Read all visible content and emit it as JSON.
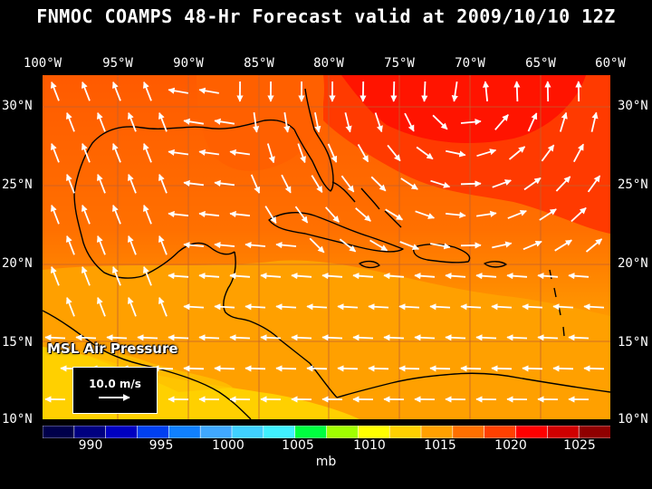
{
  "title": "FNMOC COAMPS 48-Hr Forecast valid at 2009/10/10 12Z",
  "longitude_labels": [
    "100°W",
    "95°W",
    "90°W",
    "85°W",
    "80°W",
    "75°W",
    "70°W",
    "65°W",
    "60°W"
  ],
  "latitude_labels": [
    "30°N",
    "25°N",
    "20°N",
    "15°N",
    "10°N"
  ],
  "field_label": "MSL Air Pressure",
  "wind_scale": {
    "label": "10.0 m/s",
    "speed_ms": 10.0
  },
  "colorbar": {
    "unit": "mb",
    "tick_labels": [
      "990",
      "995",
      "1000",
      "1005",
      "1010",
      "1015",
      "1020",
      "1025"
    ],
    "min": 987.5,
    "max": 1027.5,
    "step": 2.5,
    "colors": [
      "#00004a",
      "#000080",
      "#0000c0",
      "#0040f0",
      "#1080ff",
      "#40a8ff",
      "#40d0ff",
      "#40f0ff",
      "#00ff40",
      "#a0ff00",
      "#ffff00",
      "#ffd000",
      "#ffa000",
      "#ff7000",
      "#ff4000",
      "#ff0000",
      "#d00000",
      "#900000"
    ]
  },
  "map": {
    "projection": "Mercator",
    "lon_range": [
      -100,
      -60
    ],
    "lat_range": [
      10,
      31
    ],
    "grid_spacing_deg": 5,
    "coastline_color": "#000000",
    "vector_color": "#ffffff"
  }
}
